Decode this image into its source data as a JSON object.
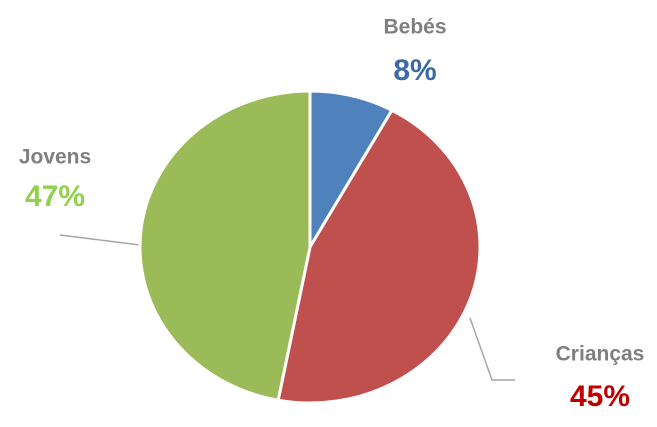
{
  "chart_data": {
    "type": "pie",
    "categories": [
      "Bebés",
      "Crianças",
      "Jovens"
    ],
    "values": [
      8,
      45,
      47
    ],
    "value_labels": [
      "8%",
      "45%",
      "47%"
    ],
    "colors": [
      "#4f81bd",
      "#c0504d",
      "#9bbb59"
    ],
    "label_colors": [
      "#3b6aa7",
      "#c00000",
      "#92d050"
    ]
  }
}
